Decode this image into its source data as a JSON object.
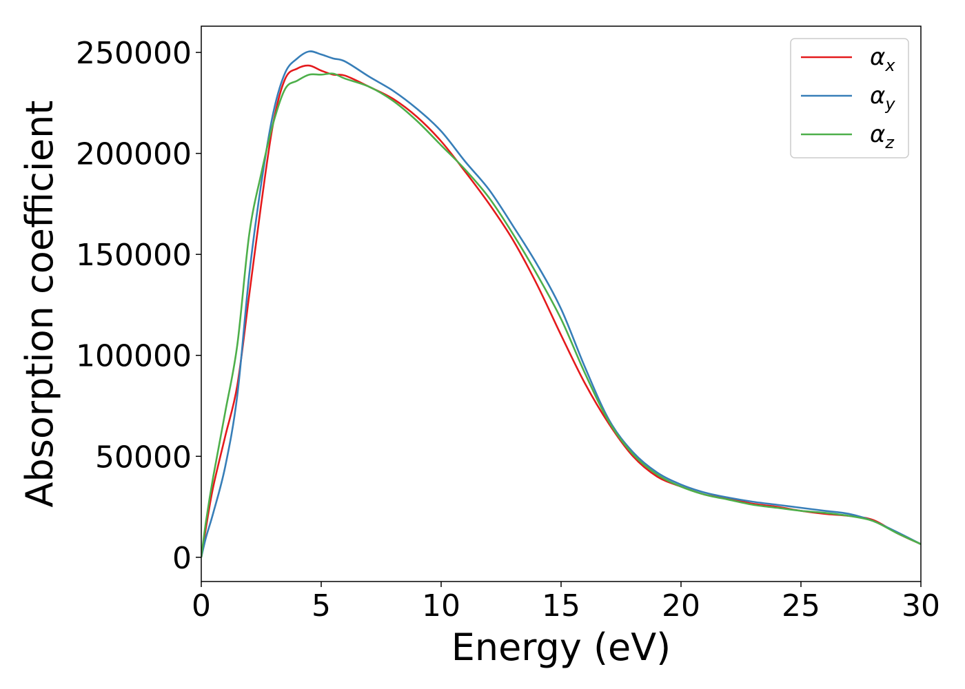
{
  "chart_data": {
    "type": "line",
    "title": "",
    "xlabel": "Energy (eV)",
    "ylabel": "Absorption coefficient",
    "xlim": [
      0,
      30
    ],
    "ylim": [
      -12000,
      263000
    ],
    "xticks": [
      0,
      5,
      10,
      15,
      20,
      25,
      30
    ],
    "yticks": [
      0,
      50000,
      100000,
      150000,
      200000,
      250000
    ],
    "grid": false,
    "legend_position": "top-right",
    "series": [
      {
        "name": "x",
        "color": "#e41a1c",
        "x": [
          0,
          0.2,
          0.5,
          1.0,
          1.5,
          2.0,
          2.5,
          3.0,
          3.5,
          4.0,
          4.5,
          5.0,
          5.5,
          6.0,
          7.0,
          8.0,
          9.0,
          10.0,
          11.0,
          12.0,
          13.0,
          14.0,
          15.0,
          16.0,
          17.0,
          18.0,
          19.0,
          20.0,
          21.0,
          22.0,
          23.0,
          24.0,
          25.0,
          26.0,
          27.0,
          28.0,
          29.0,
          30.0
        ],
        "values": [
          0,
          15000,
          35000,
          60000,
          85000,
          130000,
          175000,
          215000,
          237000,
          242000,
          243500,
          241000,
          239000,
          238500,
          233000,
          227000,
          218000,
          206000,
          191000,
          175000,
          157000,
          135000,
          110000,
          86000,
          66000,
          50000,
          40000,
          35000,
          31000,
          29000,
          26500,
          25000,
          23000,
          21500,
          20500,
          18500,
          12000,
          6500
        ]
      },
      {
        "name": "y",
        "color": "#377eb8",
        "x": [
          0,
          0.2,
          0.5,
          1.0,
          1.5,
          2.0,
          2.5,
          3.0,
          3.5,
          4.0,
          4.5,
          5.0,
          5.5,
          6.0,
          7.0,
          8.0,
          9.0,
          10.0,
          11.0,
          12.0,
          13.0,
          14.0,
          15.0,
          16.0,
          17.0,
          18.0,
          19.0,
          20.0,
          21.0,
          22.0,
          23.0,
          24.0,
          25.0,
          26.0,
          27.0,
          28.0,
          29.0,
          30.0
        ],
        "values": [
          0,
          10000,
          22000,
          45000,
          80000,
          140000,
          185000,
          220000,
          240000,
          247000,
          250500,
          249000,
          247000,
          245500,
          238000,
          231000,
          222000,
          211000,
          196000,
          182000,
          164000,
          145000,
          123000,
          94000,
          68000,
          52000,
          42000,
          36000,
          32000,
          29500,
          27500,
          26000,
          24500,
          23000,
          21500,
          18000,
          12500,
          6500
        ]
      },
      {
        "name": "z",
        "color": "#4daf4a",
        "x": [
          0,
          0.2,
          0.5,
          1.0,
          1.5,
          2.0,
          2.5,
          3.0,
          3.5,
          4.0,
          4.5,
          5.0,
          5.5,
          6.0,
          7.0,
          8.0,
          9.0,
          10.0,
          11.0,
          12.0,
          13.0,
          14.0,
          15.0,
          16.0,
          17.0,
          18.0,
          19.0,
          20.0,
          21.0,
          22.0,
          23.0,
          24.0,
          25.0,
          26.0,
          27.0,
          28.0,
          29.0,
          30.0
        ],
        "values": [
          0,
          18000,
          40000,
          72000,
          105000,
          160000,
          190000,
          215000,
          232000,
          236000,
          239000,
          239000,
          239500,
          237000,
          233000,
          226000,
          216000,
          204000,
          192000,
          178000,
          160000,
          140000,
          118000,
          91000,
          67000,
          51000,
          41000,
          35000,
          31000,
          28500,
          26000,
          24500,
          23000,
          22000,
          20500,
          18000,
          12000,
          6500
        ]
      }
    ]
  }
}
